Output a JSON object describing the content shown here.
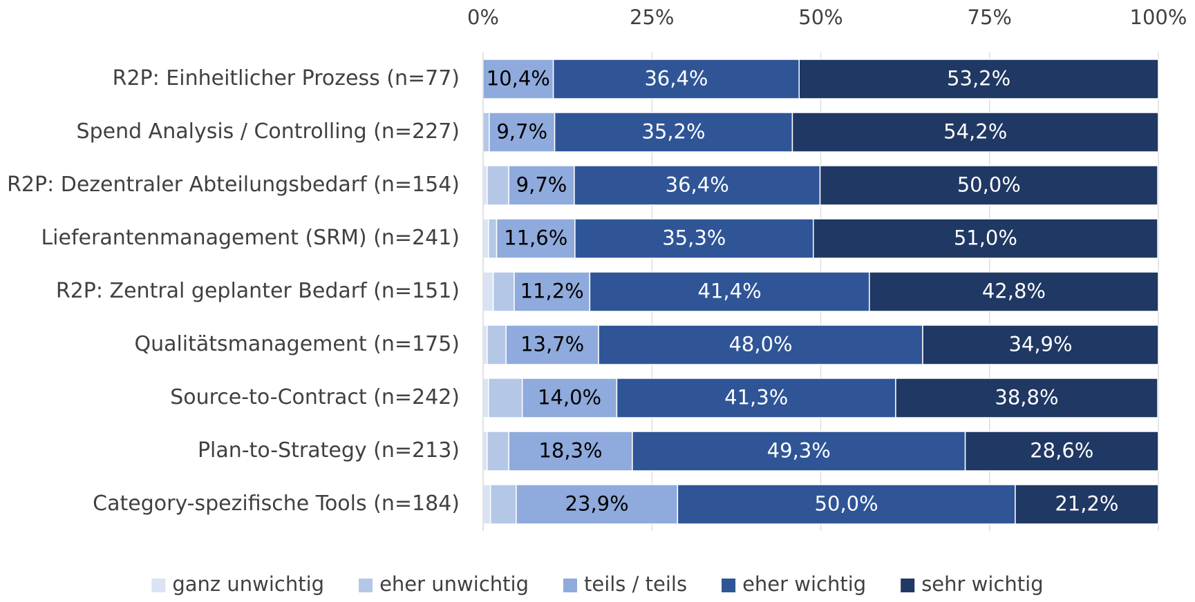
{
  "chart_data": {
    "type": "stacked-barh",
    "categories": [
      "R2P: Einheitlicher Prozess (n=77)",
      "Spend Analysis / Controlling (n=227)",
      "R2P: Dezentraler Abteilungsbedarf (n=154)",
      "Lieferantenmanagement (SRM) (n=241)",
      "R2P: Zentral geplanter Bedarf (n=151)",
      "Qualitätsmanagement (n=175)",
      "Source-to-Contract (n=242)",
      "Plan-to-Strategy (n=213)",
      "Category-spezifische Tools (n=184)"
    ],
    "series": [
      {
        "name": "ganz unwichtig",
        "color": "#dae3f3",
        "values": [
          0,
          0,
          0.6,
          0.8,
          1.5,
          0.6,
          0.8,
          0.6,
          1.1
        ]
      },
      {
        "name": "eher unwichtig",
        "color": "#b4c7e7",
        "values": [
          0,
          0.9,
          3.2,
          1.2,
          3.1,
          2.8,
          5.0,
          3.2,
          3.8
        ]
      },
      {
        "name": "teils / teils",
        "color": "#8faadc",
        "text_color": "#000000",
        "values": [
          10.4,
          9.7,
          9.7,
          11.6,
          11.2,
          13.7,
          14.0,
          18.3,
          23.9
        ],
        "value_labels": [
          "10,4%",
          "9,7%",
          "9,7%",
          "11,6%",
          "11,2%",
          "13,7%",
          "14,0%",
          "18,3%",
          "23,9%"
        ]
      },
      {
        "name": "eher wichtig",
        "color": "#2f5597",
        "text_color": "#ffffff",
        "values": [
          36.4,
          35.2,
          36.4,
          35.3,
          41.4,
          48.0,
          41.3,
          49.3,
          50.0
        ],
        "value_labels": [
          "36,4%",
          "35,2%",
          "36,4%",
          "35,3%",
          "41,4%",
          "48,0%",
          "41,3%",
          "49,3%",
          "50,0%"
        ]
      },
      {
        "name": "sehr wichtig",
        "color": "#203864",
        "text_color": "#ffffff",
        "values": [
          53.2,
          54.2,
          50.0,
          51.0,
          42.8,
          34.9,
          38.8,
          28.6,
          21.2
        ],
        "value_labels": [
          "53,2%",
          "54,2%",
          "50,0%",
          "51,0%",
          "42,8%",
          "34,9%",
          "38,8%",
          "28,6%",
          "21,2%"
        ]
      }
    ],
    "xlim": [
      0,
      100
    ],
    "xticks": [
      {
        "value": 0,
        "label": "0%"
      },
      {
        "value": 25,
        "label": "25%"
      },
      {
        "value": 50,
        "label": "50%"
      },
      {
        "value": 75,
        "label": "75%"
      },
      {
        "value": 100,
        "label": "100%"
      }
    ],
    "grid": true,
    "legend": "bottom"
  }
}
